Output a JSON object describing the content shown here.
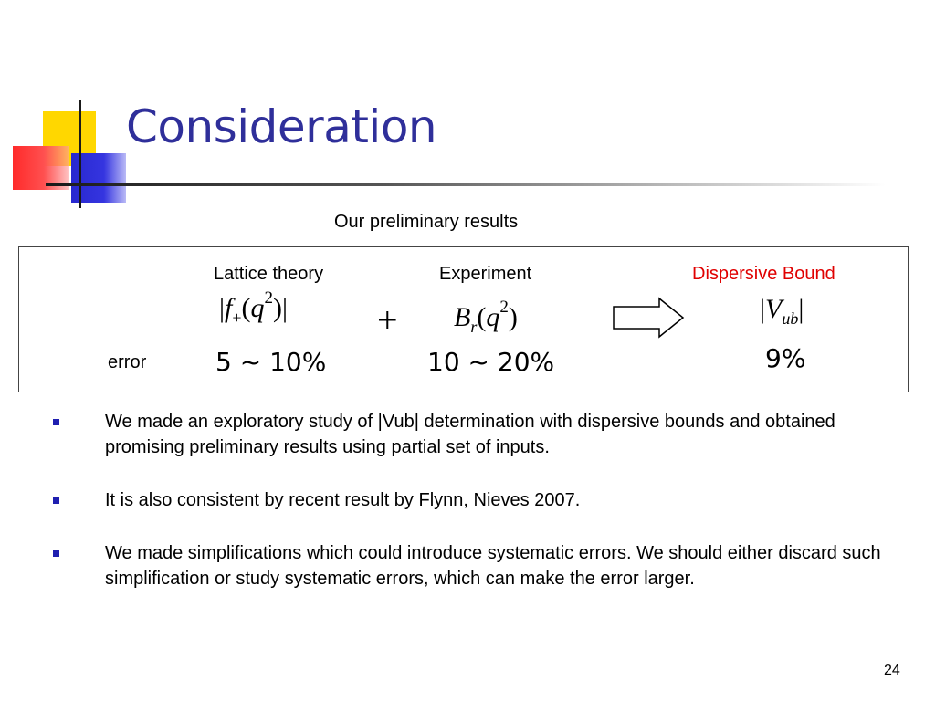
{
  "slide": {
    "title": "Consideration",
    "caption": "Our preliminary results",
    "page_number": "24"
  },
  "results": {
    "columns": [
      {
        "heading": "Lattice theory",
        "formula": "|f+(q2)|",
        "error": "5 ~ 10%"
      },
      {
        "heading": "Experiment",
        "formula": "Br(q2)",
        "error": "10 ~ 20%"
      },
      {
        "heading": "Dispersive Bound",
        "formula": "|Vub|",
        "error": "9%"
      }
    ],
    "operator": "+",
    "error_label": "error",
    "highlight_color": "#e00000"
  },
  "bullets": [
    "We made an exploratory study of |Vub|  determination with dispersive bounds and obtained promising preliminary results using partial set of inputs.",
    "It is also consistent by recent result by Flynn, Nieves 2007.",
    "We made simplifications which could introduce systematic errors. We should either discard such simplification or study systematic errors, which can make the error larger."
  ],
  "colors": {
    "title": "#2f2f9a",
    "bullet": "#1f1fb0",
    "logo_yellow": "#ffd700",
    "logo_red": "#ff2a2a",
    "logo_blue": "#2828d0"
  }
}
